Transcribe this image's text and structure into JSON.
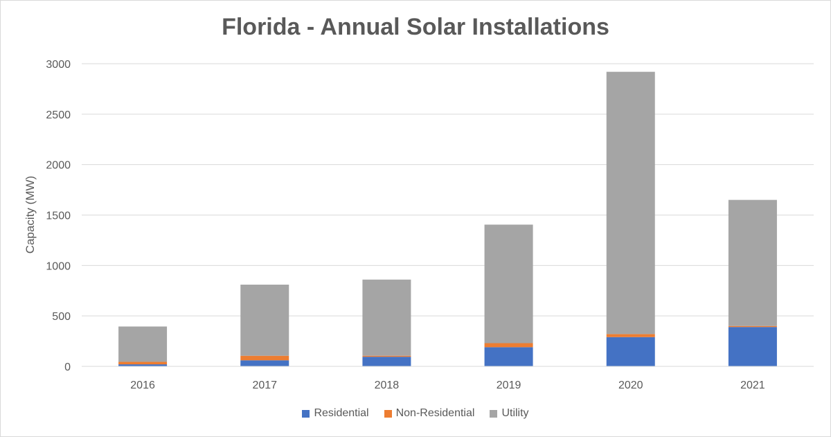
{
  "chart_data": {
    "type": "bar",
    "stacked": true,
    "title": "Florida - Annual Solar Installations",
    "xlabel": "",
    "ylabel": "Capacity (MW)",
    "ylim": [
      0,
      3000
    ],
    "yticks": [
      0,
      500,
      1000,
      1500,
      2000,
      2500,
      3000
    ],
    "grid": true,
    "legend_position": "bottom",
    "categories": [
      "2016",
      "2017",
      "2018",
      "2019",
      "2020",
      "2021"
    ],
    "series": [
      {
        "name": "Residential",
        "color": "#4472c4",
        "values": [
          20,
          60,
          95,
          190,
          290,
          390
        ]
      },
      {
        "name": "Non-Residential",
        "color": "#ed7d31",
        "values": [
          25,
          45,
          10,
          40,
          30,
          10
        ]
      },
      {
        "name": "Utility",
        "color": "#a5a5a5",
        "values": [
          350,
          705,
          755,
          1175,
          2600,
          1250
        ]
      }
    ]
  }
}
